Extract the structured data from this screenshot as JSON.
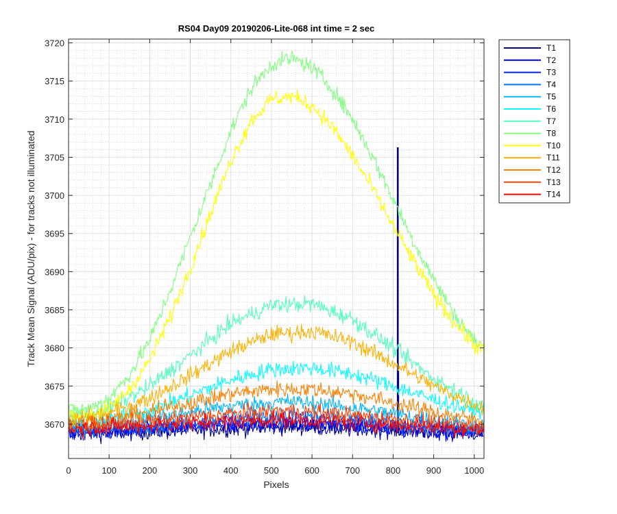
{
  "chart_data": {
    "type": "line",
    "title": "RS04 Day09 20190206-Lite-068 int time = 2 sec",
    "xlabel": "Pixels",
    "ylabel": "Track Mean Signal (ADU/pix) - for tracks not illuminated",
    "xlim": [
      0,
      1024
    ],
    "ylim": [
      3665.5,
      3720.5
    ],
    "x_ticks": [
      0,
      100,
      200,
      300,
      400,
      500,
      600,
      700,
      800,
      900,
      1000
    ],
    "y_ticks": [
      3670,
      3675,
      3680,
      3685,
      3690,
      3695,
      3700,
      3705,
      3710,
      3715,
      3720
    ],
    "grid": "major and minor",
    "legend_position": "outside top-right",
    "noise_amplitude": "approx ±1.5 ADU per pixel",
    "series": [
      {
        "name": "T1",
        "color": "#00008f",
        "x": [
          0,
          100,
          200,
          300,
          400,
          500,
          600,
          700,
          800,
          810,
          811,
          812,
          813,
          814,
          900,
          1024
        ],
        "y": [
          3668.8,
          3668.8,
          3669.0,
          3669.2,
          3669.4,
          3669.6,
          3669.6,
          3669.4,
          3669.2,
          3669.2,
          3706.3,
          3677.0,
          3669.2,
          3669.2,
          3669.0,
          3668.8
        ]
      },
      {
        "name": "T2",
        "color": "#0000d0",
        "x": [
          0,
          200,
          400,
          550,
          700,
          900,
          1024
        ],
        "y": [
          3668.9,
          3669.2,
          3669.8,
          3670.0,
          3669.6,
          3669.1,
          3668.9
        ]
      },
      {
        "name": "T3",
        "color": "#0020ff",
        "x": [
          0,
          200,
          400,
          550,
          700,
          900,
          1024
        ],
        "y": [
          3669.0,
          3669.4,
          3670.1,
          3670.4,
          3670.0,
          3669.3,
          3669.0
        ]
      },
      {
        "name": "T4",
        "color": "#0070ff",
        "x": [
          0,
          200,
          400,
          550,
          700,
          900,
          1024
        ],
        "y": [
          3669.2,
          3669.8,
          3670.8,
          3671.2,
          3670.6,
          3669.6,
          3669.2
        ]
      },
      {
        "name": "T5",
        "color": "#00b4ff",
        "x": [
          0,
          200,
          400,
          550,
          700,
          900,
          1024
        ],
        "y": [
          3669.6,
          3670.8,
          3672.4,
          3673.0,
          3672.2,
          3670.6,
          3669.6
        ]
      },
      {
        "name": "T6",
        "color": "#00ffff",
        "x": [
          0,
          100,
          200,
          300,
          400,
          500,
          600,
          700,
          800,
          900,
          1000,
          1024
        ],
        "y": [
          3670.2,
          3670.6,
          3671.8,
          3673.8,
          3675.8,
          3677.2,
          3677.4,
          3676.6,
          3675.0,
          3673.2,
          3671.8,
          3671.6
        ]
      },
      {
        "name": "T7",
        "color": "#50ffc0",
        "x": [
          0,
          100,
          200,
          300,
          400,
          500,
          600,
          700,
          800,
          900,
          1000,
          1024
        ],
        "y": [
          3671.0,
          3672.0,
          3675.0,
          3679.0,
          3683.2,
          3685.6,
          3685.8,
          3683.8,
          3680.0,
          3676.0,
          3673.0,
          3672.6
        ]
      },
      {
        "name": "T8",
        "color": "#80ff80",
        "x": [
          0,
          50,
          100,
          150,
          200,
          250,
          300,
          350,
          400,
          450,
          500,
          550,
          600,
          650,
          700,
          750,
          800,
          850,
          900,
          950,
          1000,
          1024
        ],
        "y": [
          3671.8,
          3672.0,
          3673.4,
          3676.5,
          3681.0,
          3687.5,
          3694.5,
          3701.5,
          3708.5,
          3714.0,
          3717.2,
          3718.0,
          3716.8,
          3714.0,
          3710.0,
          3705.0,
          3699.5,
          3694.0,
          3689.0,
          3684.5,
          3681.0,
          3680.0
        ]
      },
      {
        "name": "T10",
        "color": "#ffff00",
        "x": [
          0,
          50,
          100,
          150,
          200,
          250,
          300,
          350,
          400,
          450,
          500,
          550,
          600,
          650,
          700,
          750,
          800,
          850,
          900,
          950,
          1000,
          1024
        ],
        "y": [
          3671.2,
          3671.2,
          3672.0,
          3674.6,
          3678.4,
          3684.0,
          3690.6,
          3697.6,
          3704.6,
          3709.8,
          3712.6,
          3713.0,
          3711.8,
          3709.0,
          3705.2,
          3700.8,
          3696.0,
          3691.4,
          3687.0,
          3683.4,
          3680.4,
          3679.6
        ]
      },
      {
        "name": "T11",
        "color": "#ffb000",
        "x": [
          0,
          100,
          200,
          300,
          400,
          500,
          600,
          700,
          800,
          900,
          1000,
          1024
        ],
        "y": [
          3670.6,
          3671.4,
          3673.4,
          3676.4,
          3679.6,
          3681.8,
          3682.2,
          3680.8,
          3678.0,
          3675.0,
          3672.6,
          3672.2
        ]
      },
      {
        "name": "T12",
        "color": "#ff8000",
        "x": [
          0,
          100,
          200,
          300,
          400,
          500,
          600,
          700,
          800,
          900,
          1000,
          1024
        ],
        "y": [
          3670.2,
          3670.6,
          3671.6,
          3672.8,
          3674.0,
          3674.6,
          3674.6,
          3674.0,
          3672.8,
          3671.6,
          3670.6,
          3670.4
        ]
      },
      {
        "name": "T13",
        "color": "#ff4000",
        "x": [
          0,
          200,
          400,
          550,
          700,
          900,
          1024
        ],
        "y": [
          3669.6,
          3670.4,
          3671.4,
          3671.8,
          3671.2,
          3670.2,
          3669.6
        ]
      },
      {
        "name": "T14",
        "color": "#ff0000",
        "x": [
          0,
          200,
          400,
          550,
          700,
          900,
          1024
        ],
        "y": [
          3669.4,
          3669.8,
          3670.4,
          3670.6,
          3670.2,
          3669.6,
          3669.3
        ]
      }
    ]
  }
}
